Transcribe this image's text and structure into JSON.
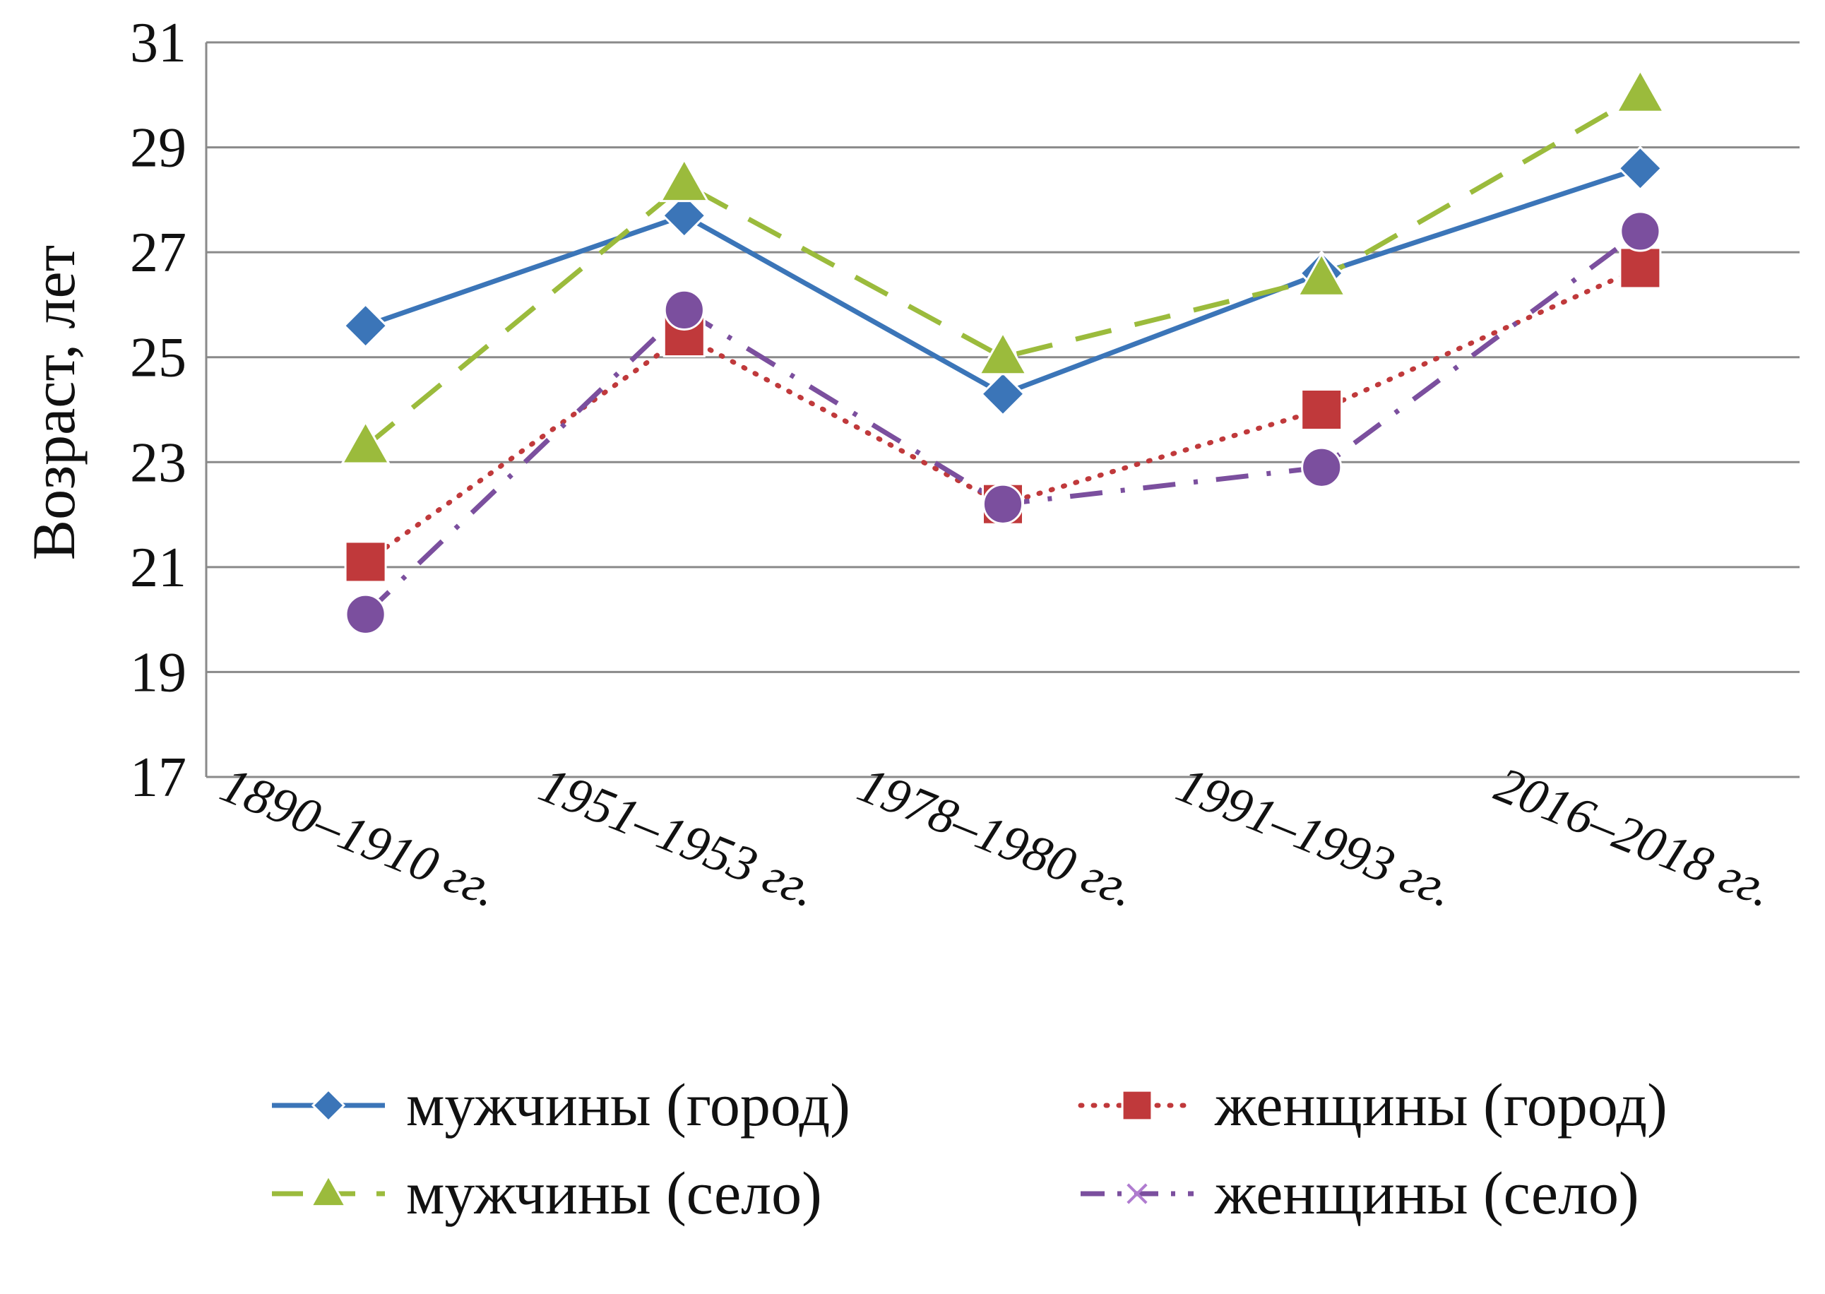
{
  "chart_data": {
    "type": "line",
    "ylabel": "Возраст, лет",
    "xlabel": "",
    "ylim": [
      17,
      31
    ],
    "yticks": [
      17,
      19,
      21,
      23,
      25,
      27,
      29,
      31
    ],
    "categories": [
      "1890–1910 гг.",
      "1951–1953 гг.",
      "1978–1980 гг.",
      "1991–1993 гг.",
      "2016–2018 гг."
    ],
    "grid": true,
    "legend_position": "bottom",
    "series": [
      {
        "name": "мужчины (город)",
        "values": [
          25.6,
          27.7,
          24.3,
          26.6,
          28.6
        ],
        "color": "#3b75b8",
        "line": "solid",
        "marker": "diamond"
      },
      {
        "name": "женщины (город)",
        "values": [
          21.1,
          25.4,
          22.2,
          24.0,
          26.7
        ],
        "color": "#c0393b",
        "line": "dotted",
        "marker": "square"
      },
      {
        "name": "мужчины (село)",
        "values": [
          23.3,
          28.3,
          25.0,
          26.5,
          30.0
        ],
        "color": "#9bbb3c",
        "line": "dashed",
        "marker": "triangle"
      },
      {
        "name": "женщины (село)",
        "values": [
          20.1,
          25.9,
          22.2,
          22.9,
          27.4
        ],
        "color": "#7b4f9e",
        "line": "dashdot",
        "marker": "circle",
        "legend_marker": "x"
      }
    ]
  }
}
